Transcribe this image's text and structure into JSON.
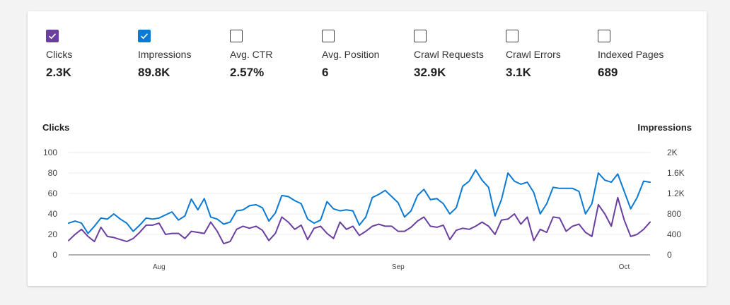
{
  "metrics": [
    {
      "label": "Clicks",
      "value": "2.3K",
      "checked": true,
      "color": "#6b3fa0"
    },
    {
      "label": "Impressions",
      "value": "89.8K",
      "checked": true,
      "color": "#0a7ad4"
    },
    {
      "label": "Avg. CTR",
      "value": "2.57%",
      "checked": false
    },
    {
      "label": "Avg. Position",
      "value": "6",
      "checked": false
    },
    {
      "label": "Crawl Requests",
      "value": "32.9K",
      "checked": false
    },
    {
      "label": "Crawl Errors",
      "value": "3.1K",
      "checked": false
    },
    {
      "label": "Indexed Pages",
      "value": "689",
      "checked": false
    }
  ],
  "chart_data": {
    "type": "line",
    "left_axis_title": "Clicks",
    "right_axis_title": "Impressions",
    "left_ticks": [
      "100",
      "80",
      "60",
      "40",
      "20",
      "0"
    ],
    "right_ticks": [
      "2K",
      "1.6K",
      "1.2K",
      "800",
      "400",
      "0"
    ],
    "ylim_left": [
      0,
      100
    ],
    "ylim_right": [
      0,
      2000
    ],
    "x_labels": [
      {
        "label": "Aug",
        "index": 14
      },
      {
        "label": "Sep",
        "index": 51
      },
      {
        "label": "Oct",
        "index": 86
      }
    ],
    "grid": true,
    "series": [
      {
        "name": "Impressions",
        "axis": "right",
        "color": "#0a7ad4",
        "values": [
          620,
          660,
          620,
          420,
          560,
          720,
          700,
          800,
          700,
          620,
          460,
          580,
          720,
          700,
          720,
          780,
          840,
          680,
          760,
          1090,
          880,
          1100,
          740,
          700,
          600,
          640,
          860,
          880,
          960,
          980,
          920,
          660,
          820,
          1160,
          1140,
          1060,
          1000,
          700,
          620,
          680,
          1040,
          900,
          860,
          880,
          860,
          580,
          740,
          1120,
          1180,
          1260,
          1140,
          1020,
          740,
          860,
          1160,
          1280,
          1080,
          1100,
          1000,
          800,
          920,
          1340,
          1440,
          1660,
          1460,
          1320,
          760,
          1080,
          1600,
          1440,
          1380,
          1420,
          1220,
          800,
          1000,
          1320,
          1300,
          1300,
          1300,
          1240,
          800,
          1000,
          1600,
          1460,
          1420,
          1580,
          1240,
          900,
          1120,
          1440,
          1420
        ]
      },
      {
        "name": "Clicks",
        "axis": "left",
        "color": "#6b3fa0",
        "values": [
          14,
          20,
          25,
          18,
          13,
          27,
          18,
          17,
          15,
          13,
          16,
          22,
          29,
          29,
          31,
          20,
          21,
          21,
          16,
          23,
          22,
          21,
          32,
          23,
          11,
          13,
          25,
          28,
          26,
          28,
          24,
          14,
          21,
          37,
          32,
          25,
          29,
          15,
          26,
          28,
          21,
          16,
          32,
          25,
          28,
          19,
          23,
          28,
          30,
          28,
          28,
          23,
          23,
          27,
          33,
          37,
          28,
          27,
          29,
          15,
          24,
          26,
          25,
          28,
          32,
          28,
          20,
          34,
          35,
          40,
          30,
          37,
          14,
          25,
          22,
          37,
          36,
          23,
          28,
          30,
          22,
          18,
          49,
          40,
          28,
          56,
          34,
          18,
          20,
          25,
          32
        ]
      }
    ]
  }
}
